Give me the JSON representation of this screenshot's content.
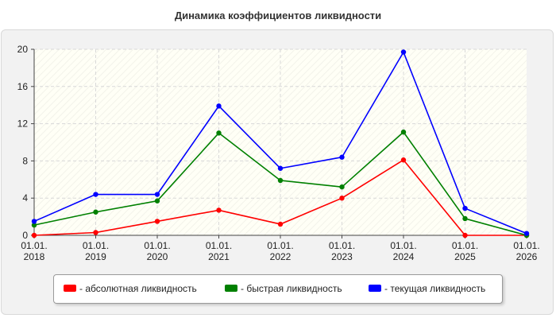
{
  "chart_data": {
    "type": "line",
    "title": "Динамика коэффициентов ликвидности",
    "x": [
      "01.01.\n2018",
      "01.01.\n2019",
      "01.01.\n2020",
      "01.01.\n2021",
      "01.01.\n2022",
      "01.01.\n2023",
      "01.01.\n2024",
      "01.01.\n2025",
      "01.01.\n2026"
    ],
    "ylim": [
      0,
      20
    ],
    "yticks": [
      "0",
      "4",
      "8",
      "12",
      "16",
      "20"
    ],
    "grid": true,
    "legend_position": "bottom",
    "series": [
      {
        "name": "- абсолютная ликвидность",
        "color": "#ff0000",
        "values": [
          0.0,
          0.3,
          1.5,
          2.7,
          1.2,
          4.0,
          8.1,
          0.0,
          0.0
        ]
      },
      {
        "name": "- быстрая ликвидность",
        "color": "#008000",
        "values": [
          1.1,
          2.5,
          3.7,
          11.0,
          5.9,
          5.2,
          11.1,
          1.8,
          0.0
        ]
      },
      {
        "name": "- текущая ликвидность",
        "color": "#0000ff",
        "values": [
          1.5,
          4.4,
          4.4,
          13.9,
          7.2,
          8.4,
          19.7,
          2.9,
          0.2
        ]
      }
    ]
  }
}
